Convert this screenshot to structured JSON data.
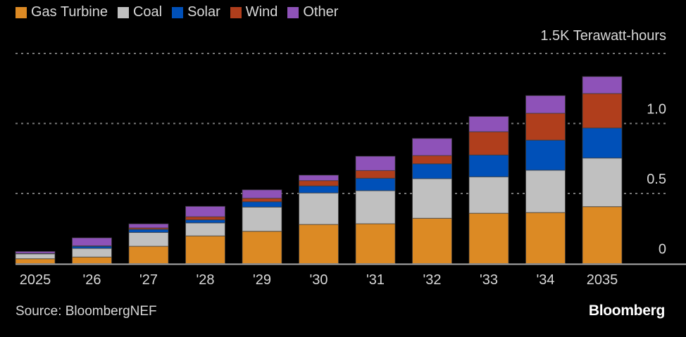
{
  "unit_label": "1.5K Terawatt-hours",
  "source": "Source: BloombergNEF",
  "brand": "Bloomberg",
  "chart_data": {
    "type": "bar",
    "stacked": true,
    "title": "",
    "xlabel": "",
    "ylabel": "Terawatt-hours (thousands)",
    "ylim": [
      0,
      1.5
    ],
    "yticks": [
      {
        "v": 0,
        "label": "0"
      },
      {
        "v": 0.5,
        "label": "0.5"
      },
      {
        "v": 1.0,
        "label": "1.0"
      }
    ],
    "grid": true,
    "legend_position": "top-left",
    "categories": [
      "2025",
      "'26",
      "'27",
      "'28",
      "'29",
      "'30",
      "'31",
      "'32",
      "'33",
      "'34",
      "2035"
    ],
    "series": [
      {
        "name": "Gas Turbine",
        "color": "#dc8a24",
        "values": [
          0.034,
          0.046,
          0.123,
          0.197,
          0.23,
          0.279,
          0.284,
          0.323,
          0.359,
          0.364,
          0.406
        ]
      },
      {
        "name": "Coal",
        "color": "#c0c0c0",
        "values": [
          0.035,
          0.062,
          0.099,
          0.093,
          0.173,
          0.225,
          0.236,
          0.283,
          0.26,
          0.302,
          0.347
        ]
      },
      {
        "name": "Solar",
        "color": "#0050b8",
        "values": [
          0.002,
          0.015,
          0.022,
          0.022,
          0.038,
          0.05,
          0.089,
          0.106,
          0.156,
          0.215,
          0.215
        ]
      },
      {
        "name": "Wind",
        "color": "#b03e1c",
        "values": [
          0.001,
          0.003,
          0.01,
          0.022,
          0.025,
          0.038,
          0.055,
          0.059,
          0.166,
          0.192,
          0.246
        ]
      },
      {
        "name": "Other",
        "color": "#8e52b8",
        "values": [
          0.014,
          0.057,
          0.029,
          0.074,
          0.06,
          0.039,
          0.102,
          0.122,
          0.109,
          0.126,
          0.121
        ]
      }
    ]
  }
}
